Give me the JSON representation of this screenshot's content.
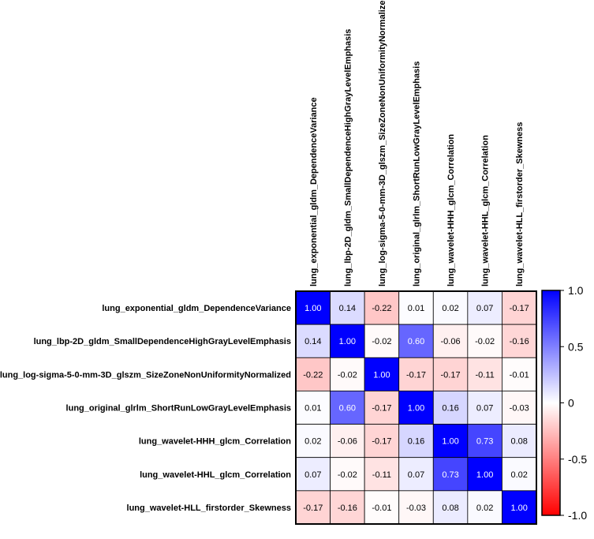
{
  "chart_data": {
    "type": "heatmap",
    "title": "",
    "variables": [
      "lung_exponential_gldm_DependenceVariance",
      "lung_lbp-2D_gldm_SmallDependenceHighGrayLevelEmphasis",
      "lung_log-sigma-5-0-mm-3D_glszm_SizeZoneNonUniformityNormalized",
      "lung_original_glrlm_ShortRunLowGrayLevelEmphasis",
      "lung_wavelet-HHH_glcm_Correlation",
      "lung_wavelet-HHL_glcm_Correlation",
      "lung_wavelet-HLL_firstorder_Skewness"
    ],
    "matrix": [
      [
        1.0,
        0.14,
        -0.22,
        0.01,
        0.02,
        0.07,
        -0.17
      ],
      [
        0.14,
        1.0,
        -0.02,
        0.6,
        -0.06,
        -0.02,
        -0.16
      ],
      [
        -0.22,
        -0.02,
        1.0,
        -0.17,
        -0.17,
        -0.11,
        -0.01
      ],
      [
        0.01,
        0.6,
        -0.17,
        1.0,
        0.16,
        0.07,
        -0.03
      ],
      [
        0.02,
        -0.06,
        -0.17,
        0.16,
        1.0,
        0.73,
        0.08
      ],
      [
        0.07,
        -0.02,
        -0.11,
        0.07,
        0.73,
        1.0,
        0.02
      ],
      [
        -0.17,
        -0.16,
        -0.01,
        -0.03,
        0.08,
        0.02,
        1.0
      ]
    ],
    "value_labels": [
      [
        "1.00",
        "0.14",
        "-0.22",
        "0.01",
        "0.02",
        "0.07",
        "-0.17"
      ],
      [
        "0.14",
        "1.00",
        "-0.02",
        "0.60",
        "-0.06",
        "-0.02",
        "-0.16"
      ],
      [
        "-0.22",
        "-0.02",
        "1.00",
        "-0.17",
        "-0.17",
        "-0.11",
        "-0.01"
      ],
      [
        "0.01",
        "0.60",
        "-0.17",
        "1.00",
        "0.16",
        "0.07",
        "-0.03"
      ],
      [
        "0.02",
        "-0.06",
        "-0.17",
        "0.16",
        "1.00",
        "0.73",
        "0.08"
      ],
      [
        "0.07",
        "-0.02",
        "-0.11",
        "0.07",
        "0.73",
        "1.00",
        "0.02"
      ],
      [
        "-0.17",
        "-0.16",
        "-0.01",
        "-0.03",
        "0.08",
        "0.02",
        "1.00"
      ]
    ],
    "colorbar": {
      "range": [
        -1.0,
        1.0
      ],
      "ticks": [
        1.0,
        0.5,
        0,
        -0.5,
        -1.0
      ],
      "tick_labels": [
        "1.0",
        "0.5",
        "0",
        "-0.5",
        "-1.0"
      ],
      "colors": {
        "low": "#ff0000",
        "mid": "#ffffff",
        "high": "#0000ff"
      }
    }
  }
}
